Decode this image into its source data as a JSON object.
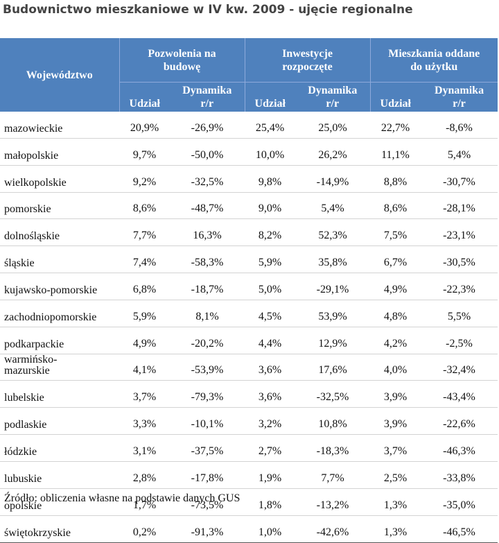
{
  "title": "Budownictwo mieszkaniowe w IV kw. 2009 - ujęcie regionalne",
  "header": {
    "region": "Województwo",
    "groups": [
      {
        "line1": "Pozwolenia na",
        "line2": "budowę"
      },
      {
        "line1": "Inwestycje",
        "line2": "rozpoczęte"
      },
      {
        "line1": "Mieszkania oddane",
        "line2": "do użytku"
      }
    ],
    "udzial": "Udział",
    "dyn1": "Dynamika",
    "dyn2": "r/r"
  },
  "rows": [
    {
      "name1": "mazowieckie",
      "name2": "",
      "c": [
        "20,9%",
        "-26,9%",
        "25,4%",
        "25,0%",
        "22,7%",
        "-8,6%"
      ]
    },
    {
      "name1": "małopolskie",
      "name2": "",
      "c": [
        "9,7%",
        "-50,0%",
        "10,0%",
        "26,2%",
        "11,1%",
        "5,4%"
      ]
    },
    {
      "name1": "wielkopolskie",
      "name2": "",
      "c": [
        "9,2%",
        "-32,5%",
        "9,8%",
        "-14,9%",
        "8,8%",
        "-30,7%"
      ]
    },
    {
      "name1": "pomorskie",
      "name2": "",
      "c": [
        "8,6%",
        "-48,7%",
        "9,0%",
        "5,4%",
        "8,6%",
        "-28,1%"
      ]
    },
    {
      "name1": "dolnośląskie",
      "name2": "",
      "c": [
        "7,7%",
        "16,3%",
        "8,2%",
        "52,3%",
        "7,5%",
        "-23,1%"
      ]
    },
    {
      "name1": "śląskie",
      "name2": "",
      "c": [
        "7,4%",
        "-58,3%",
        "5,9%",
        "35,8%",
        "6,7%",
        "-30,5%"
      ]
    },
    {
      "name1": "kujawsko-pomorskie",
      "name2": "",
      "c": [
        "6,8%",
        "-18,7%",
        "5,0%",
        "-29,1%",
        "4,9%",
        "-22,3%"
      ]
    },
    {
      "name1": "zachodniopomorskie",
      "name2": "",
      "c": [
        "5,9%",
        "8,1%",
        "4,5%",
        "53,9%",
        "4,8%",
        "5,5%"
      ]
    },
    {
      "name1": "podkarpackie",
      "name2": "",
      "c": [
        "4,9%",
        "-20,2%",
        "4,4%",
        "12,9%",
        "4,2%",
        "-2,5%"
      ]
    },
    {
      "name1": "warmińsko-",
      "name2": "mazurskie",
      "c": [
        "4,1%",
        "-53,9%",
        "3,6%",
        "17,6%",
        "4,0%",
        "-32,4%"
      ]
    },
    {
      "name1": "lubelskie",
      "name2": "",
      "c": [
        "3,7%",
        "-79,3%",
        "3,6%",
        "-32,5%",
        "3,9%",
        "-43,4%"
      ]
    },
    {
      "name1": "podlaskie",
      "name2": "",
      "c": [
        "3,3%",
        "-10,1%",
        "3,2%",
        "10,8%",
        "3,9%",
        "-22,6%"
      ]
    },
    {
      "name1": "łódzkie",
      "name2": "",
      "c": [
        "3,1%",
        "-37,5%",
        "2,7%",
        "-18,3%",
        "3,7%",
        "-46,3%"
      ]
    },
    {
      "name1": "lubuskie",
      "name2": "",
      "c": [
        "2,8%",
        "-17,8%",
        "1,9%",
        "7,7%",
        "2,5%",
        "-33,8%"
      ]
    },
    {
      "name1": "opolskie",
      "name2": "",
      "c": [
        "1,7%",
        "-73,5%",
        "1,8%",
        "-13,2%",
        "1,3%",
        "-35,0%"
      ]
    },
    {
      "name1": "świętokrzyskie",
      "name2": "",
      "c": [
        "0,2%",
        "-91,3%",
        "1,0%",
        "-42,6%",
        "1,3%",
        "-46,5%"
      ]
    }
  ],
  "source": "Źródło: obliczenia własne na podstawie danych GUS",
  "colors": {
    "header_bg": "#4f81bd",
    "header_text": "#ffffff"
  }
}
